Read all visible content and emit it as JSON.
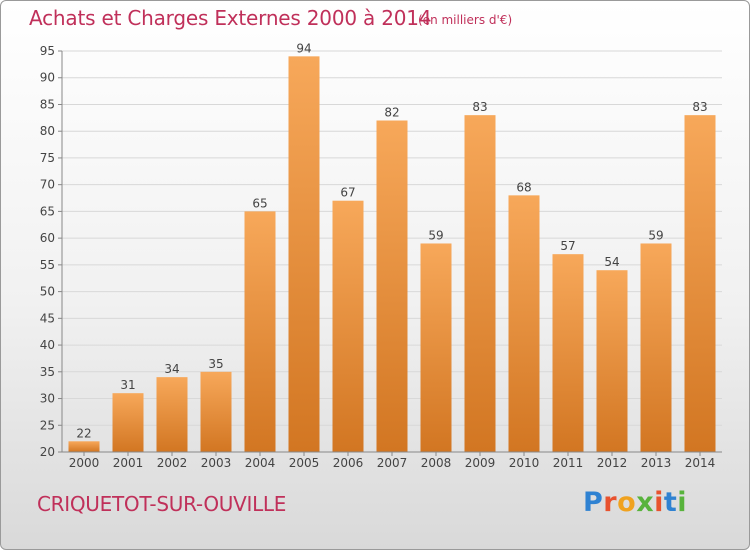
{
  "header": {
    "title": "Achats et Charges Externes 2000 à 2014",
    "unit_note": "(en milliers d'€)"
  },
  "footer": {
    "town": "CRIQUETOT-SUR-OUVILLE",
    "logo": "Proxiti"
  },
  "colors": {
    "title": "#c0305a",
    "bar_light": "#f7a85a",
    "bar_dark": "#d27622",
    "grid": "#d8d8d8"
  },
  "chart_data": {
    "type": "bar",
    "title": "Achats et Charges Externes 2000 à 2014",
    "subtitle": "(en milliers d'€)",
    "categories": [
      "2000",
      "2001",
      "2002",
      "2003",
      "2004",
      "2005",
      "2006",
      "2007",
      "2008",
      "2009",
      "2010",
      "2011",
      "2012",
      "2013",
      "2014"
    ],
    "values": [
      22,
      31,
      34,
      35,
      65,
      94,
      67,
      82,
      59,
      83,
      68,
      57,
      54,
      59,
      83
    ],
    "ylim": [
      20,
      95
    ],
    "yticks": [
      20,
      25,
      30,
      35,
      40,
      45,
      50,
      55,
      60,
      65,
      70,
      75,
      80,
      85,
      90,
      95
    ],
    "grid": true,
    "data_labels": true
  }
}
